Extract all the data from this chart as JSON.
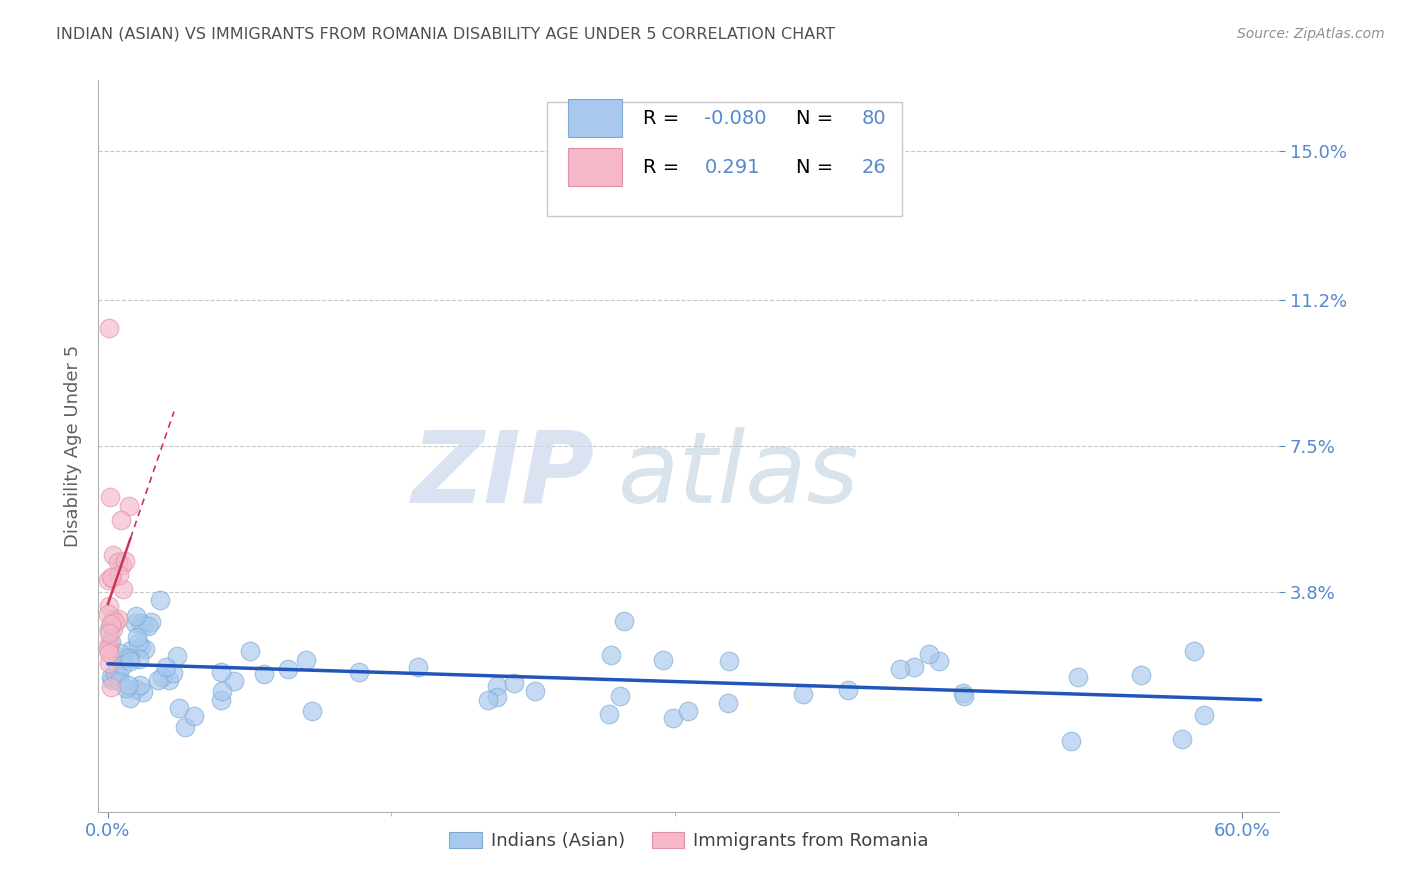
{
  "title": "INDIAN (ASIAN) VS IMMIGRANTS FROM ROMANIA DISABILITY AGE UNDER 5 CORRELATION CHART",
  "source": "Source: ZipAtlas.com",
  "ylabel_label": "Disability Age Under 5",
  "ytick_labels": [
    "3.8%",
    "7.5%",
    "11.2%",
    "15.0%"
  ],
  "ytick_values": [
    0.038,
    0.075,
    0.112,
    0.15
  ],
  "blue_color": "#a8c8ee",
  "blue_edge_color": "#7aaad4",
  "pink_color": "#f4b8c8",
  "pink_edge_color": "#e090a8",
  "blue_line_color": "#2255bb",
  "pink_line_color": "#cc3355",
  "title_color": "#505050",
  "axis_label_color": "#606060",
  "tick_color": "#5588cc",
  "source_color": "#909090",
  "background_color": "#ffffff",
  "grid_color": "#c8c8c8",
  "legend_text_color": "#000000",
  "legend_value_color": "#5588cc",
  "xlim": [
    -0.005,
    0.62
  ],
  "ylim": [
    -0.018,
    0.168
  ],
  "watermark_zip_color": "#d0dff0",
  "watermark_atlas_color": "#c8d8ec"
}
